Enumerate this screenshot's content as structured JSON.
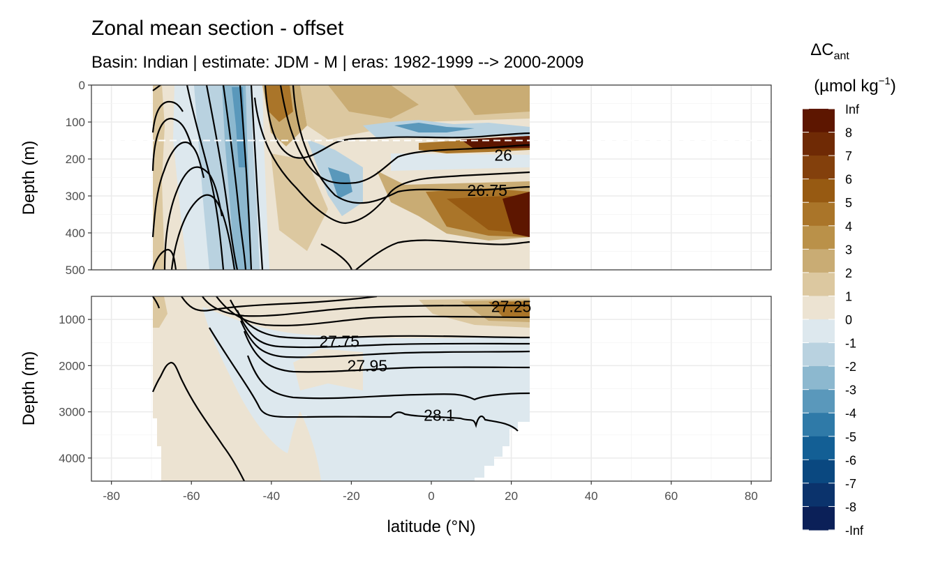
{
  "chart_data": {
    "type": "heatmap",
    "title": "Zonal mean section - offset",
    "subtitle": "Basin: Indian | estimate: JDM - M | eras: 1982-1999 --> 2000-2009",
    "xlabel": "latitude (°N)",
    "ylabel": "Depth (m)",
    "xlim": [
      -85,
      85
    ],
    "x_ticks": [
      -80,
      -60,
      -40,
      -20,
      0,
      20,
      40,
      60,
      80
    ],
    "x_tick_labels": [
      "-80",
      "-60",
      "-40",
      "-20",
      "0",
      "20",
      "40",
      "60",
      "80"
    ],
    "data_lat_range": [
      -69,
      24
    ],
    "reference_depth_dashed": 150,
    "panels": [
      {
        "name": "upper",
        "ylim": [
          0,
          500
        ],
        "y_ticks": [
          0,
          100,
          200,
          300,
          400,
          500
        ],
        "y_tick_labels": [
          "0",
          "100",
          "200",
          "300",
          "400",
          "500"
        ],
        "contour_labels": [
          {
            "text": "26",
            "lat": 18,
            "depth": 190
          },
          {
            "text": "26.75",
            "lat": 14,
            "depth": 285
          }
        ]
      },
      {
        "name": "lower",
        "ylim": [
          500,
          4500
        ],
        "y_ticks": [
          1000,
          2000,
          3000,
          4000
        ],
        "y_tick_labels": [
          "1000",
          "2000",
          "3000",
          "4000"
        ],
        "contour_labels": [
          {
            "text": "27.25",
            "lat": 20,
            "depth": 720
          },
          {
            "text": "27.75",
            "lat": -23,
            "depth": 1470
          },
          {
            "text": "27.95",
            "lat": -16,
            "depth": 2000
          },
          {
            "text": "28.1",
            "lat": 2,
            "depth": 3070
          }
        ]
      }
    ],
    "legend": {
      "title_main": "ΔC",
      "title_sub": "ant",
      "unit_prefix": "(µmol kg",
      "unit_sup": "−1",
      "unit_suffix": ")",
      "labels": [
        "Inf",
        "8",
        "7",
        "6",
        "5",
        "4",
        "3",
        "2",
        "1",
        "0",
        "-1",
        "-2",
        "-3",
        "-4",
        "-5",
        "-6",
        "-7",
        "-8",
        "-Inf"
      ],
      "colors": [
        "#5d1600",
        "#6f2a05",
        "#83400c",
        "#975a12",
        "#aa7529",
        "#ba9149",
        "#c9ac74",
        "#dcc8a0",
        "#ece3d2",
        "#dde8ee",
        "#b9d2e0",
        "#8cb8cf",
        "#5a98bb",
        "#2f7aa8",
        "#135f95",
        "#0a4880",
        "#0b336c",
        "#0b2058",
        "#08124a"
      ]
    }
  }
}
